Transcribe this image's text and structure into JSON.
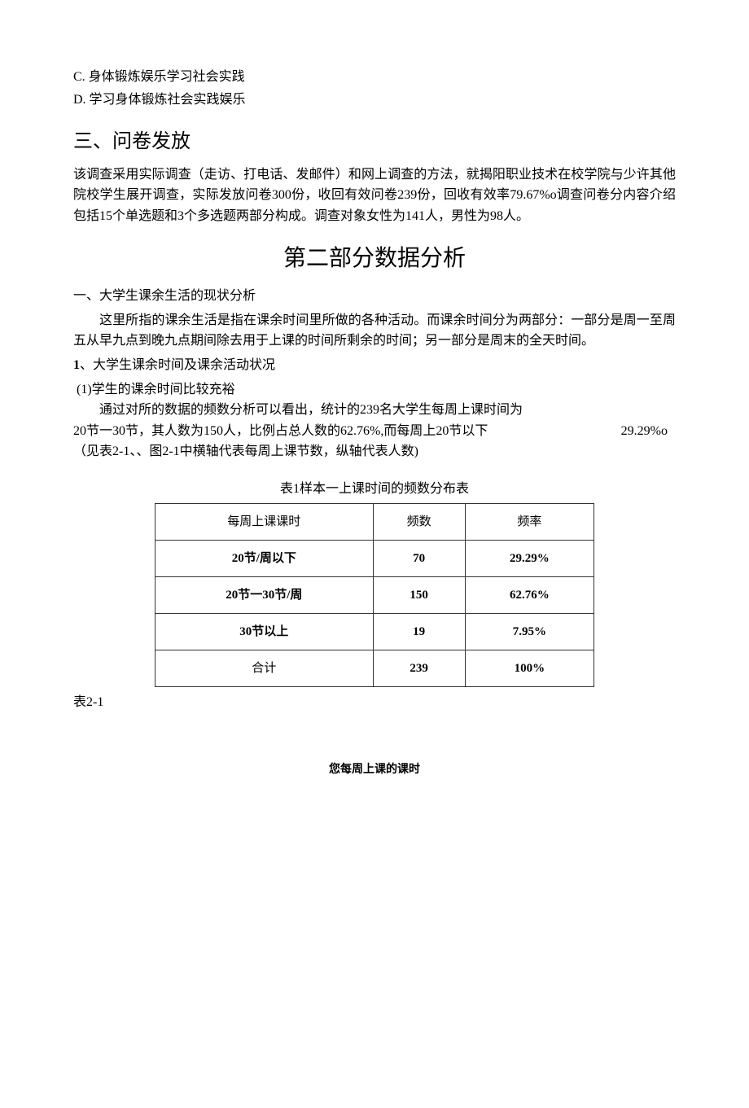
{
  "options": {
    "c": "C. 身体锻炼娱乐学习社会实践",
    "d": "D. 学习身体锻炼社会实践娱乐"
  },
  "section3": {
    "heading": "三、问卷发放",
    "para": "该调查采用实际调查（走访、打电话、发邮件）和网上调查的方法，就揭阳职业技术在校学院与少许其他院校学生展开调查，实际发放问卷300份，收回有效问卷239份，回收有效率79.67%o调查问卷分内容介绍包括15个单选题和3个多选题两部分构成。调查对象女性为141人，男性为98人。"
  },
  "part2": {
    "title": "第二部分数据分析",
    "sub1": {
      "heading": "一、大学生课余生活的现状分析",
      "para": "这里所指的课余生活是指在课余时间里所做的各种活动。而课余时间分为两部分：一部分是周一至周五从早九点到晚九点期间除去用于上课的时间所剩余的时间；另一部分是周末的全天时间。"
    },
    "item1": {
      "heading_num": "1",
      "heading_text": "、大学生课余时间及课余活动状况",
      "point1": "(1)学生的课余时间比较充裕",
      "para_a": "通过对所的数据的频数分析可以看出，统计的239名大学生每周上课时间为",
      "para_b_left": "20节一30节，其人数为150人，比例占总人数的62.76%,而每周上20节以下",
      "para_b_right": "29.29%o",
      "para_c": "（见表2-1、、图2-1中横轴代表每周上课节数，纵轴代表人数)"
    }
  },
  "table1": {
    "caption": "表1样本一上课时间的频数分布表",
    "headers": [
      "每周上课课时",
      "频数",
      "频率"
    ],
    "rows": [
      {
        "label": "20节/周以下",
        "freq": "70",
        "rate": "29.29%",
        "label_bold": true
      },
      {
        "label": "20节一30节/周",
        "freq": "150",
        "rate": "62.76%",
        "label_bold": true
      },
      {
        "label": "30节以上",
        "freq": "19",
        "rate": "7.95%",
        "label_bold": true
      },
      {
        "label": "合计",
        "freq": "239",
        "rate": "100%",
        "label_bold": false
      }
    ],
    "footer_label": "表2-1"
  },
  "chart": {
    "title": "您每周上课的课时"
  },
  "colors": {
    "text": "#000000",
    "background": "#ffffff",
    "table_border": "#333333"
  }
}
